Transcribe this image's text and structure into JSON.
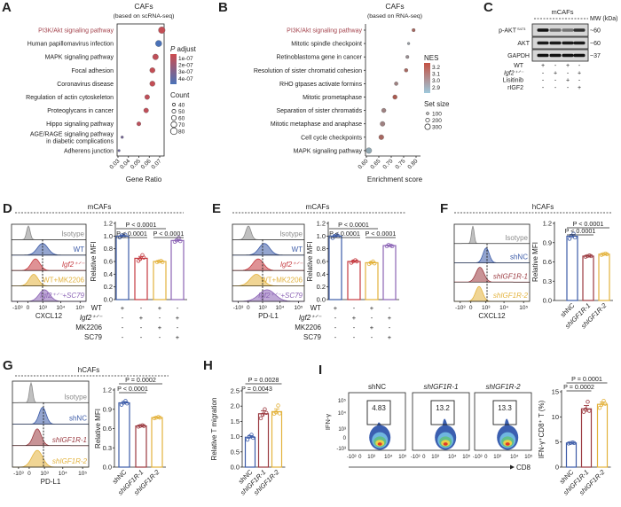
{
  "panel_letters": [
    "A",
    "B",
    "C",
    "D",
    "E",
    "F",
    "G",
    "H",
    "I"
  ],
  "chart_data": [
    {
      "id": "A",
      "type": "scatter",
      "title": "CAFs",
      "subtitle": "(based on scRNA-seq)",
      "xlabel": "Gene Ratio",
      "xticks": [
        "0.03",
        "0.04",
        "0.05",
        "0.06",
        "0.07"
      ],
      "xlim": [
        0.03,
        0.07
      ],
      "categories": [
        [
          "PI3K/Akt signaling pathway"
        ],
        [
          "Human papillomavirus infection"
        ],
        [
          "MAPK signaling pathway"
        ],
        [
          "Focal adhesion"
        ],
        [
          "Coronavirus disease"
        ],
        [
          "Regulation of actin cytoskeleton"
        ],
        [
          "Proteoglycans in cancer"
        ],
        [
          "Hippo signaling pathway"
        ],
        [
          "AGE/RAGE signaling pathway",
          "in diabetic complications"
        ],
        [
          "Adherens junction"
        ]
      ],
      "x": [
        0.072,
        0.069,
        0.066,
        0.063,
        0.063,
        0.058,
        0.057,
        0.05,
        0.034,
        0.031
      ],
      "count": [
        80,
        76,
        70,
        65,
        65,
        60,
        60,
        52,
        36,
        33
      ],
      "p_adjust": [
        1.2e-07,
        4e-07,
        1.3e-07,
        1.2e-07,
        1.2e-07,
        1.3e-07,
        1.3e-07,
        1.4e-07,
        3e-07,
        3.2e-07
      ],
      "highlight_color": "#a3414b",
      "legend": {
        "color_title_italic": "P",
        "color_title": " adjust",
        "color_ticks": [
          "1e-07",
          "2e-07",
          "3e-07",
          "4e-07"
        ],
        "color_range": [
          "#cc4b4e",
          "#4a72b8"
        ],
        "size_title": "Count",
        "size_ticks": [
          "40",
          "50",
          "60",
          "70",
          "80"
        ]
      }
    },
    {
      "id": "B",
      "type": "scatter",
      "title": "CAFs",
      "subtitle": "(based on RNA-seq)",
      "xlabel": "Enrichment score",
      "xticks": [
        "0.60",
        "0.65",
        "0.70",
        "0.75",
        "0.80"
      ],
      "xlim": [
        0.6,
        0.8
      ],
      "categories": [
        [
          "PI3K/Akt signaling pathway"
        ],
        [
          "Mitotic spindle checkpoint"
        ],
        [
          "Retinoblastoma gene in cancer"
        ],
        [
          "Resolution of sister chromatid cohesion"
        ],
        [
          "RHO gtpases activate formins"
        ],
        [
          "Mitotic prometaphase"
        ],
        [
          "Separation of sister chromatids"
        ],
        [
          "Mitotic metaphase and anaphase"
        ],
        [
          "Cell cycle checkpoints"
        ],
        [
          "MAPK signaling pathway"
        ]
      ],
      "x": [
        0.79,
        0.77,
        0.765,
        0.76,
        0.72,
        0.715,
        0.67,
        0.665,
        0.66,
        0.61
      ],
      "nes": [
        3.15,
        2.95,
        3.0,
        3.15,
        3.05,
        3.2,
        3.05,
        3.05,
        3.15,
        2.9
      ],
      "set_size": [
        110,
        60,
        110,
        130,
        140,
        190,
        190,
        220,
        230,
        280
      ],
      "highlight_color": "#a3414b",
      "legend": {
        "color_title": "NES",
        "color_ticks": [
          "3.2",
          "3.1",
          "3.0",
          "2.9"
        ],
        "color_range": [
          "#c45142",
          "#9ec9dc"
        ],
        "size_title": "Set size",
        "size_ticks": [
          "100",
          "200",
          "300"
        ]
      }
    },
    {
      "id": "C",
      "type": "blot",
      "header": "mCAFs",
      "mw_label": "MW (kDa)",
      "bands": [
        {
          "name": "p-AKT",
          "sup": "S473",
          "mw": "~60",
          "intensity": [
            1.0,
            0.55,
            0.5,
            0.85
          ]
        },
        {
          "name": "AKT",
          "sup": "",
          "mw": "~60",
          "intensity": [
            0.95,
            0.95,
            0.95,
            0.95
          ]
        },
        {
          "name": "GAPDH",
          "sup": "",
          "mw": "~37",
          "intensity": [
            1.0,
            1.0,
            1.0,
            1.0
          ]
        }
      ],
      "conditions": [
        {
          "label": "WT",
          "values": [
            "+",
            "-",
            "+",
            "-"
          ]
        },
        {
          "label": "Igf2⁺ᐟ⁻",
          "values": [
            "-",
            "+",
            "-",
            "+"
          ]
        },
        {
          "label": "Lisitinib",
          "values": [
            "-",
            "-",
            "+",
            "-"
          ]
        },
        {
          "label": "rIGF2",
          "values": [
            "-",
            "-",
            "-",
            "+"
          ]
        }
      ]
    },
    {
      "id": "D",
      "type": "bar",
      "header": "mCAFs",
      "histogram": {
        "xlabel": "CXCL12",
        "xticks": [
          "-10³",
          "0",
          "10³",
          "10⁴",
          "10⁵"
        ],
        "tracks": [
          {
            "label": "Isotype",
            "color": "#8c8c8c"
          },
          {
            "label": "WT",
            "color": "#3d5ca8"
          },
          {
            "label": "Igf2⁺ᐟ⁻",
            "color": "#c4393f"
          },
          {
            "label": "WT+MK2206",
            "color": "#e3b23c"
          },
          {
            "label": "Igf2⁺ᐟ⁻+SC79",
            "color": "#8b63b5"
          }
        ]
      },
      "ylabel": "Relative MFI",
      "yticks": [
        "0.0",
        "0.2",
        "0.4",
        "0.6",
        "0.8",
        "1.0",
        "1.2"
      ],
      "ylim": [
        0,
        1.2
      ],
      "values": [
        1.0,
        0.65,
        0.6,
        0.93
      ],
      "points": [
        [
          0.98,
          1.01,
          1.0,
          1.02
        ],
        [
          0.61,
          0.64,
          0.7,
          0.66
        ],
        [
          0.59,
          0.6,
          0.61,
          0.59
        ],
        [
          0.91,
          0.93,
          0.97,
          0.92
        ]
      ],
      "colors": [
        "#3d5ca8",
        "#c4393f",
        "#e3b23c",
        "#8b63b5"
      ],
      "conditions": [
        {
          "label": "WT",
          "values": [
            "+",
            "-",
            "+",
            "-"
          ]
        },
        {
          "label": "Igf2⁺ᐟ⁻",
          "values": [
            "-",
            "+",
            "-",
            "+"
          ]
        },
        {
          "label": "MK2206",
          "values": [
            "-",
            "-",
            "+",
            "-"
          ]
        },
        {
          "label": "SC79",
          "values": [
            "-",
            "-",
            "-",
            "+"
          ]
        }
      ],
      "significance": [
        {
          "from": 0,
          "to": 2,
          "label": "P < 0.0001"
        },
        {
          "from": 0,
          "to": 1,
          "label": "P < 0.0001"
        },
        {
          "from": 2,
          "to": 3,
          "label": "P < 0.0001"
        }
      ]
    },
    {
      "id": "E",
      "type": "bar",
      "header": "mCAFs",
      "histogram": {
        "xlabel": "PD-L1",
        "xticks": [
          "-10³",
          "0",
          "10³",
          "10⁴",
          "10⁵"
        ],
        "tracks": [
          {
            "label": "Isotype",
            "color": "#8c8c8c"
          },
          {
            "label": "WT",
            "color": "#3d5ca8"
          },
          {
            "label": "Igf2⁺ᐟ⁻",
            "color": "#c4393f"
          },
          {
            "label": "WT+MK2206",
            "color": "#e3b23c"
          },
          {
            "label": "Igf2⁺ᐟ⁻+SC79",
            "color": "#8b63b5"
          }
        ]
      },
      "ylabel": "Relative MFI",
      "yticks": [
        "0.0",
        "0.2",
        "0.4",
        "0.6",
        "0.8",
        "1.0",
        "1.2"
      ],
      "ylim": [
        0,
        1.2
      ],
      "values": [
        1.0,
        0.6,
        0.58,
        0.85
      ],
      "points": [
        [
          0.97,
          1.0,
          1.02,
          1.0
        ],
        [
          0.58,
          0.6,
          0.62,
          0.6
        ],
        [
          0.56,
          0.58,
          0.6,
          0.57
        ],
        [
          0.84,
          0.86,
          0.85,
          0.84
        ]
      ],
      "colors": [
        "#3d5ca8",
        "#c4393f",
        "#e3b23c",
        "#8b63b5"
      ],
      "conditions": [
        {
          "label": "WT",
          "values": [
            "+",
            "-",
            "+",
            "-"
          ]
        },
        {
          "label": "Igf2⁺ᐟ⁻",
          "values": [
            "-",
            "+",
            "-",
            "+"
          ]
        },
        {
          "label": "MK2206",
          "values": [
            "-",
            "-",
            "+",
            "-"
          ]
        },
        {
          "label": "SC79",
          "values": [
            "-",
            "-",
            "-",
            "+"
          ]
        }
      ],
      "significance": [
        {
          "from": 0,
          "to": 2,
          "label": "P < 0.0001"
        },
        {
          "from": 0,
          "to": 1,
          "label": "P < 0.0001"
        },
        {
          "from": 2,
          "to": 3,
          "label": "P < 0.0001"
        }
      ]
    },
    {
      "id": "F",
      "type": "bar",
      "header": "hCAFs",
      "histogram": {
        "xlabel": "CXCL12",
        "xticks": [
          "-10³",
          "0",
          "10³",
          "10⁴",
          "10⁵"
        ],
        "tracks": [
          {
            "label": "Isotype",
            "color": "#8c8c8c"
          },
          {
            "label": "shNC",
            "color": "#3d5ca8"
          },
          {
            "label": "shIGF1R-1",
            "color": "#9b3a40"
          },
          {
            "label": "shIGF1R-2",
            "color": "#e3b23c"
          }
        ]
      },
      "ylabel": "Relative MFI",
      "yticks": [
        "0.0",
        "0.3",
        "0.6",
        "0.9",
        "1.2"
      ],
      "ylim": [
        0,
        1.2
      ],
      "categories": [
        "shNC",
        "shIGF1R-1",
        "shIGF1R-2"
      ],
      "values": [
        1.0,
        0.69,
        0.72
      ],
      "points": [
        [
          0.96,
          1.0,
          1.04,
          0.98
        ],
        [
          0.68,
          0.69,
          0.7,
          0.69
        ],
        [
          0.71,
          0.72,
          0.73,
          0.72
        ]
      ],
      "colors": [
        "#3d5ca8",
        "#9b3a40",
        "#e3b23c"
      ],
      "significance": [
        {
          "from": 0,
          "to": 2,
          "label": "P < 0.0001"
        },
        {
          "from": 0,
          "to": 1,
          "label": "P < 0.0001"
        }
      ]
    },
    {
      "id": "G",
      "type": "bar",
      "header": "hCAFs",
      "histogram": {
        "xlabel": "PD-L1",
        "xticks": [
          "-10³",
          "0",
          "10³",
          "10⁴",
          "10⁵"
        ],
        "tracks": [
          {
            "label": "Isotype",
            "color": "#8c8c8c"
          },
          {
            "label": "shNC",
            "color": "#3d5ca8"
          },
          {
            "label": "shIGF1R-1",
            "color": "#9b3a40"
          },
          {
            "label": "shIGF1R-2",
            "color": "#e3b23c"
          }
        ]
      },
      "ylabel": "Relative MFI",
      "yticks": [
        "0.0",
        "0.3",
        "0.6",
        "0.9",
        "1.2"
      ],
      "ylim": [
        0,
        1.2
      ],
      "categories": [
        "shNC",
        "shIGF1R-1",
        "shIGF1R-2"
      ],
      "values": [
        1.0,
        0.64,
        0.77
      ],
      "points": [
        [
          0.97,
          1.0,
          1.03,
          0.99
        ],
        [
          0.63,
          0.64,
          0.65,
          0.64
        ],
        [
          0.76,
          0.77,
          0.78,
          0.77
        ]
      ],
      "colors": [
        "#3d5ca8",
        "#9b3a40",
        "#e3b23c"
      ],
      "significance": [
        {
          "from": 0,
          "to": 2,
          "label": "P = 0.0002"
        },
        {
          "from": 0,
          "to": 1,
          "label": "P < 0.0001"
        }
      ]
    },
    {
      "id": "H",
      "type": "bar",
      "ylabel": "Relative T migration",
      "yticks": [
        "0.0",
        "0.5",
        "1.0",
        "1.5",
        "2.0",
        "2.5"
      ],
      "ylim": [
        0,
        2.5
      ],
      "categories": [
        "shNC",
        "shIGF1R-1",
        "shIGF1R-2"
      ],
      "values": [
        0.98,
        1.75,
        1.82
      ],
      "points": [
        [
          0.9,
          1.0,
          1.06,
          0.96
        ],
        [
          1.6,
          1.72,
          1.9,
          1.78
        ],
        [
          1.75,
          1.8,
          2.02,
          1.76
        ]
      ],
      "colors": [
        "#3d5ca8",
        "#9b3a40",
        "#e3b23c"
      ],
      "significance": [
        {
          "from": 0,
          "to": 2,
          "label": "P = 0.0028"
        },
        {
          "from": 0,
          "to": 1,
          "label": "P = 0.0043"
        }
      ]
    },
    {
      "id": "I",
      "type": "bar",
      "flow": {
        "xlabel": "CD8",
        "ylabel": "IFN-γ",
        "xticks": [
          "-10³",
          "0",
          "10³",
          "10⁴",
          "10⁵"
        ],
        "yticks": [
          "10⁵",
          "10⁴",
          "10³",
          "0",
          "-10³"
        ],
        "plots": [
          {
            "title": "shNC",
            "percent": "4.83"
          },
          {
            "title": "shIGF1R-1",
            "percent": "13.2"
          },
          {
            "title": "shIGF1R-2",
            "percent": "13.3"
          }
        ]
      },
      "ylabel": "IFN-γ⁺CD8⁺ T (%)",
      "yticks": [
        "0",
        "5",
        "10",
        "15"
      ],
      "ylim": [
        0,
        15
      ],
      "categories": [
        "shNC",
        "shIGF1R-1",
        "shIGF1R-2"
      ],
      "values": [
        4.8,
        11.6,
        12.5
      ],
      "points": [
        [
          4.7,
          4.8,
          4.9,
          4.8
        ],
        [
          11.0,
          11.5,
          13.0,
          11.2
        ],
        [
          11.8,
          12.4,
          13.2,
          12.6
        ]
      ],
      "colors": [
        "#3d5ca8",
        "#9b3a40",
        "#e3b23c"
      ],
      "significance": [
        {
          "from": 0,
          "to": 2,
          "label": "P = 0.0001"
        },
        {
          "from": 0,
          "to": 1,
          "label": "P = 0.0002"
        }
      ]
    }
  ]
}
